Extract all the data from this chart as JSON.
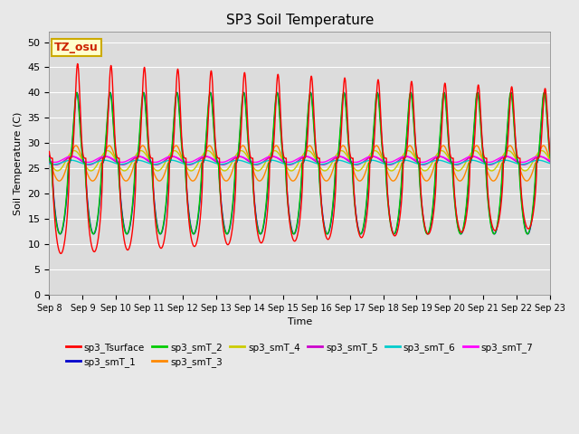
{
  "title": "SP3 Soil Temperature",
  "xlabel": "Time",
  "ylabel": "Soil Temperature (C)",
  "ylim": [
    0,
    52
  ],
  "yticks": [
    0,
    5,
    10,
    15,
    20,
    25,
    30,
    35,
    40,
    45,
    50
  ],
  "fig_bg_color": "#e8e8e8",
  "plot_bg_color": "#dcdcdc",
  "annotation_text": "TZ_osu",
  "annotation_color": "#cc2200",
  "annotation_bg": "#ffffcc",
  "annotation_border": "#ccaa00",
  "series_order": [
    "sp3_Tsurface",
    "sp3_smT_1",
    "sp3_smT_2",
    "sp3_smT_3",
    "sp3_smT_4",
    "sp3_smT_5",
    "sp3_smT_6",
    "sp3_smT_7"
  ],
  "colors": {
    "sp3_Tsurface": "#ff0000",
    "sp3_smT_1": "#0000cc",
    "sp3_smT_2": "#00cc00",
    "sp3_smT_3": "#ff8800",
    "sp3_smT_4": "#cccc00",
    "sp3_smT_5": "#cc00cc",
    "sp3_smT_6": "#00cccc",
    "sp3_smT_7": "#ff00ff"
  },
  "lw": 1.0,
  "start_day": 8,
  "end_day": 23,
  "points_per_day": 200
}
